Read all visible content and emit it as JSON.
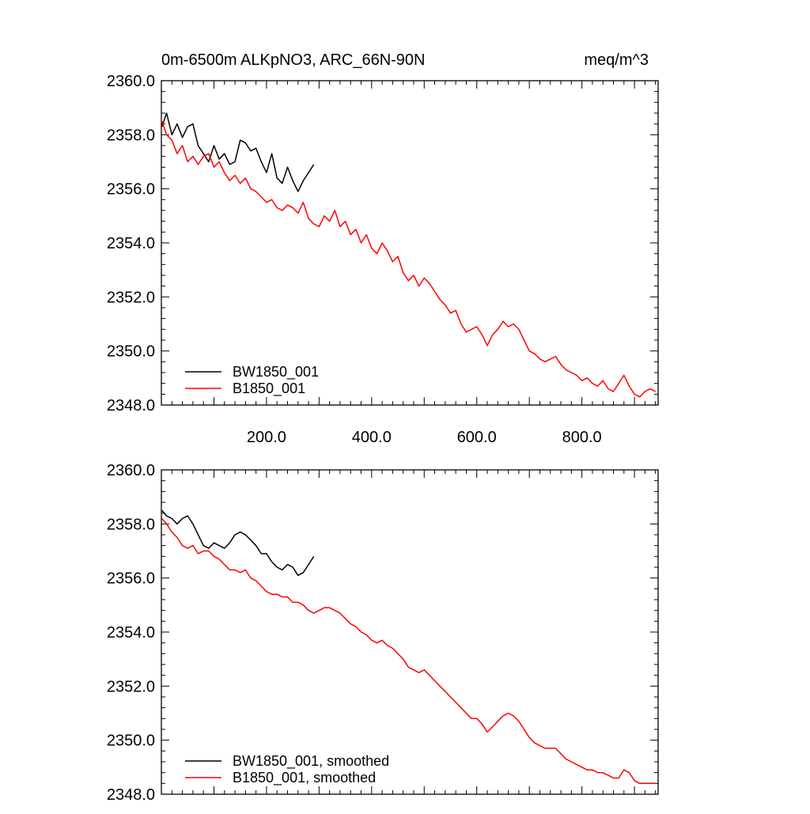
{
  "chart_data": [
    {
      "type": "line",
      "title_left": "0m-6500m ALKpNO3, ARC_66N-90N",
      "title_right": "meq/m^3",
      "xlim": [
        0,
        945
      ],
      "ylim": [
        2348.0,
        2360.0
      ],
      "xticks": [
        200,
        400,
        600,
        800
      ],
      "xtick_labels": [
        "200.0",
        "400.0",
        "600.0",
        "800.0"
      ],
      "yticks": [
        2348,
        2350,
        2352,
        2354,
        2356,
        2358,
        2360
      ],
      "ytick_labels": [
        "2348.0",
        "2350.0",
        "2352.0",
        "2354.0",
        "2356.0",
        "2358.0",
        "2360.0"
      ],
      "legend_position": "bottom-left",
      "series": [
        {
          "name": "BW1850_001",
          "color": "#000000",
          "x": [
            1,
            10,
            20,
            30,
            40,
            50,
            60,
            70,
            80,
            90,
            100,
            110,
            120,
            130,
            140,
            150,
            160,
            170,
            180,
            190,
            200,
            210,
            220,
            230,
            240,
            250,
            260,
            270,
            280,
            290
          ],
          "y": [
            2358.3,
            2358.8,
            2358.0,
            2358.4,
            2357.9,
            2358.3,
            2358.4,
            2357.6,
            2357.3,
            2357.0,
            2357.6,
            2357.1,
            2357.3,
            2356.9,
            2357.0,
            2357.8,
            2357.7,
            2357.4,
            2357.5,
            2357.0,
            2356.6,
            2357.3,
            2356.4,
            2356.2,
            2356.8,
            2356.3,
            2355.9,
            2356.3,
            2356.6,
            2356.9
          ]
        },
        {
          "name": "B1850_001",
          "color": "#ff0000",
          "x": [
            1,
            10,
            20,
            30,
            40,
            50,
            60,
            70,
            80,
            90,
            100,
            110,
            120,
            130,
            140,
            150,
            160,
            170,
            180,
            190,
            200,
            210,
            220,
            230,
            240,
            250,
            260,
            270,
            280,
            290,
            300,
            310,
            320,
            330,
            340,
            350,
            360,
            370,
            380,
            390,
            400,
            410,
            420,
            430,
            440,
            450,
            460,
            470,
            480,
            490,
            500,
            510,
            520,
            530,
            540,
            550,
            560,
            570,
            580,
            590,
            600,
            610,
            620,
            630,
            640,
            650,
            660,
            670,
            680,
            690,
            700,
            710,
            720,
            730,
            740,
            750,
            760,
            770,
            780,
            790,
            800,
            810,
            820,
            830,
            840,
            850,
            860,
            870,
            880,
            890,
            900,
            910,
            920,
            930,
            940
          ],
          "y": [
            2358.5,
            2358.0,
            2357.8,
            2357.3,
            2357.6,
            2357.0,
            2357.2,
            2356.9,
            2357.2,
            2357.3,
            2356.8,
            2357.0,
            2356.6,
            2356.3,
            2356.5,
            2356.2,
            2356.4,
            2356.0,
            2355.9,
            2355.7,
            2355.5,
            2355.6,
            2355.3,
            2355.2,
            2355.4,
            2355.3,
            2355.1,
            2355.5,
            2354.9,
            2354.7,
            2354.6,
            2355.0,
            2354.8,
            2355.2,
            2354.6,
            2354.8,
            2354.3,
            2354.5,
            2354.0,
            2354.3,
            2353.8,
            2353.6,
            2354.0,
            2353.7,
            2353.3,
            2353.5,
            2352.9,
            2352.6,
            2352.8,
            2352.4,
            2352.7,
            2352.5,
            2352.2,
            2351.9,
            2351.7,
            2351.4,
            2351.5,
            2351.0,
            2350.7,
            2350.8,
            2350.9,
            2350.6,
            2350.2,
            2350.6,
            2350.8,
            2351.1,
            2350.9,
            2351.0,
            2350.8,
            2350.4,
            2350.0,
            2349.9,
            2349.7,
            2349.6,
            2349.7,
            2349.8,
            2349.5,
            2349.3,
            2349.2,
            2349.1,
            2348.9,
            2349.0,
            2348.8,
            2348.7,
            2348.9,
            2348.6,
            2348.5,
            2348.8,
            2349.1,
            2348.7,
            2348.4,
            2348.3,
            2348.5,
            2348.6,
            2348.5
          ]
        }
      ]
    },
    {
      "type": "line",
      "xlim": [
        0,
        945
      ],
      "ylim": [
        2348.0,
        2360.0
      ],
      "yticks": [
        2348,
        2350,
        2352,
        2354,
        2356,
        2358,
        2360
      ],
      "ytick_labels": [
        "2348.0",
        "2350.0",
        "2352.0",
        "2354.0",
        "2356.0",
        "2358.0",
        "2360.0"
      ],
      "legend_position": "bottom-left",
      "series": [
        {
          "name": "BW1850_001, smoothed",
          "color": "#000000",
          "x": [
            1,
            10,
            20,
            30,
            40,
            50,
            60,
            70,
            80,
            90,
            100,
            110,
            120,
            130,
            140,
            150,
            160,
            170,
            180,
            190,
            200,
            210,
            220,
            230,
            240,
            250,
            260,
            270,
            280,
            290
          ],
          "y": [
            2358.5,
            2358.3,
            2358.2,
            2358.0,
            2358.2,
            2358.3,
            2358.0,
            2357.6,
            2357.2,
            2357.1,
            2357.3,
            2357.2,
            2357.1,
            2357.3,
            2357.6,
            2357.7,
            2357.6,
            2357.4,
            2357.2,
            2356.9,
            2356.9,
            2356.6,
            2356.4,
            2356.3,
            2356.5,
            2356.4,
            2356.1,
            2356.2,
            2356.5,
            2356.8
          ]
        },
        {
          "name": "B1850_001, smoothed",
          "color": "#ff0000",
          "x": [
            1,
            10,
            20,
            30,
            40,
            50,
            60,
            70,
            80,
            90,
            100,
            110,
            120,
            130,
            140,
            150,
            160,
            170,
            180,
            190,
            200,
            210,
            220,
            230,
            240,
            250,
            260,
            270,
            280,
            290,
            300,
            310,
            320,
            330,
            340,
            350,
            360,
            370,
            380,
            390,
            400,
            410,
            420,
            430,
            440,
            450,
            460,
            470,
            480,
            490,
            500,
            510,
            520,
            530,
            540,
            550,
            560,
            570,
            580,
            590,
            600,
            610,
            620,
            630,
            640,
            650,
            660,
            670,
            680,
            690,
            700,
            710,
            720,
            730,
            740,
            750,
            760,
            770,
            780,
            790,
            800,
            810,
            820,
            830,
            840,
            850,
            860,
            870,
            880,
            890,
            900,
            910,
            920,
            930,
            940
          ],
          "y": [
            2358.2,
            2358.0,
            2357.7,
            2357.5,
            2357.2,
            2357.1,
            2357.2,
            2356.9,
            2357.0,
            2357.0,
            2356.8,
            2356.7,
            2356.5,
            2356.3,
            2356.3,
            2356.2,
            2356.3,
            2356.0,
            2355.9,
            2355.7,
            2355.5,
            2355.4,
            2355.4,
            2355.3,
            2355.3,
            2355.1,
            2355.1,
            2355.0,
            2354.8,
            2354.7,
            2354.8,
            2354.9,
            2354.9,
            2354.8,
            2354.7,
            2354.5,
            2354.3,
            2354.2,
            2354.0,
            2353.9,
            2353.7,
            2353.6,
            2353.7,
            2353.5,
            2353.4,
            2353.2,
            2353.0,
            2352.7,
            2352.6,
            2352.5,
            2352.6,
            2352.4,
            2352.2,
            2352.0,
            2351.8,
            2351.6,
            2351.4,
            2351.2,
            2351.0,
            2350.8,
            2350.8,
            2350.6,
            2350.3,
            2350.5,
            2350.7,
            2350.9,
            2351.0,
            2350.9,
            2350.7,
            2350.4,
            2350.1,
            2349.9,
            2349.8,
            2349.7,
            2349.7,
            2349.7,
            2349.5,
            2349.3,
            2349.2,
            2349.1,
            2349.0,
            2348.9,
            2348.9,
            2348.8,
            2348.8,
            2348.7,
            2348.6,
            2348.6,
            2348.9,
            2348.8,
            2348.5,
            2348.4,
            2348.4,
            2348.4,
            2348.4
          ]
        }
      ]
    }
  ]
}
